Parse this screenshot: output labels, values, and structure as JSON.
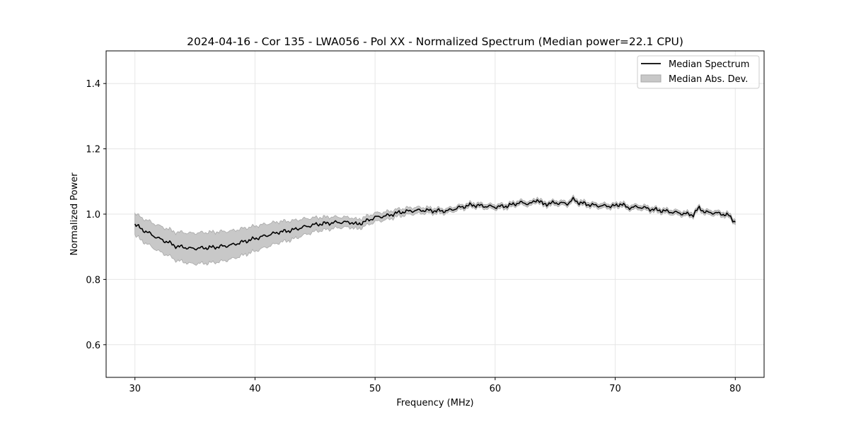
{
  "chart_data": {
    "type": "line",
    "title": "2024-04-16 - Cor 135 - LWA056 - Pol XX - Normalized Spectrum (Median power=22.1 CPU)",
    "xlabel": "Frequency (MHz)",
    "ylabel": "Normalized Power",
    "xlim": [
      27.6,
      82.4
    ],
    "ylim": [
      0.5,
      1.5
    ],
    "xticks": [
      30,
      40,
      50,
      60,
      70,
      80
    ],
    "yticks": [
      0.6,
      0.8,
      1.0,
      1.2,
      1.4
    ],
    "xtick_labels": [
      "30",
      "40",
      "50",
      "60",
      "70",
      "80"
    ],
    "ytick_labels": [
      "0.6",
      "0.8",
      "1.0",
      "1.2",
      "1.4"
    ],
    "grid": true,
    "legend_position": "top-right",
    "colors": {
      "line": "#000000",
      "band": "#c8c8c8",
      "band_edge": "#a8a8a8",
      "grid": "#e6e6e6"
    },
    "series": [
      {
        "name": "Median Spectrum",
        "kind": "line",
        "x": [
          30,
          30.5,
          31,
          32,
          33,
          33.5,
          34,
          34.5,
          35,
          36,
          37,
          38,
          39,
          40,
          41,
          42,
          43,
          44,
          45,
          46,
          47,
          48,
          48.5,
          49,
          50,
          51,
          52,
          53,
          54,
          55,
          56,
          57,
          58,
          59,
          60,
          61,
          62,
          63,
          63.5,
          64,
          65,
          66,
          66.5,
          67,
          68,
          69,
          70,
          70.5,
          71,
          72,
          73,
          74,
          75,
          76,
          76.5,
          77,
          77.5,
          78,
          79,
          79.5,
          80
        ],
        "values": [
          0.97,
          0.955,
          0.945,
          0.925,
          0.91,
          0.9,
          0.9,
          0.895,
          0.895,
          0.897,
          0.9,
          0.905,
          0.915,
          0.925,
          0.935,
          0.945,
          0.95,
          0.96,
          0.968,
          0.972,
          0.975,
          0.975,
          0.968,
          0.975,
          0.99,
          0.995,
          1.005,
          1.01,
          1.012,
          1.01,
          1.01,
          1.02,
          1.028,
          1.025,
          1.022,
          1.025,
          1.035,
          1.032,
          1.045,
          1.03,
          1.035,
          1.032,
          1.045,
          1.035,
          1.028,
          1.025,
          1.025,
          1.032,
          1.02,
          1.022,
          1.015,
          1.01,
          1.005,
          1.0,
          0.998,
          1.02,
          1.005,
          1.005,
          1.0,
          0.995,
          0.975
        ]
      },
      {
        "name": "Median Abs. Dev.",
        "kind": "band",
        "x": [
          30,
          31,
          32,
          33,
          34,
          35,
          36,
          37,
          38,
          39,
          40,
          41,
          42,
          43,
          44,
          45,
          46,
          47,
          48,
          49,
          50,
          51,
          52,
          53,
          54,
          55,
          56,
          60,
          65,
          70,
          75,
          80
        ],
        "half_width": [
          0.032,
          0.035,
          0.038,
          0.04,
          0.044,
          0.046,
          0.046,
          0.045,
          0.042,
          0.04,
          0.037,
          0.034,
          0.031,
          0.028,
          0.024,
          0.02,
          0.018,
          0.015,
          0.014,
          0.013,
          0.012,
          0.011,
          0.01,
          0.009,
          0.008,
          0.007,
          0.006,
          0.006,
          0.006,
          0.006,
          0.006,
          0.006
        ]
      }
    ]
  }
}
